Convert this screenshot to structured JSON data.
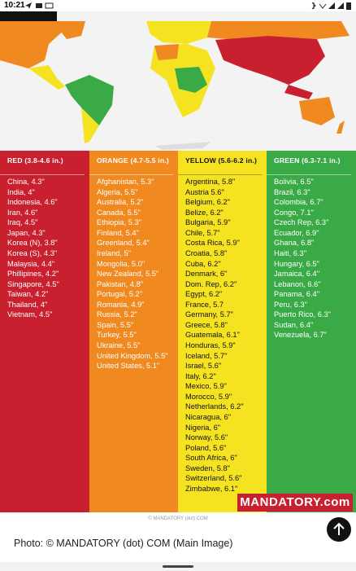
{
  "status_bar": {
    "time": "10:21"
  },
  "columns": [
    {
      "header": "RED (3.8-4.6 in.)",
      "items": [
        "China, 4.3\"",
        "India, 4\"",
        "Indonesia, 4.6\"",
        "Iran, 4.6\"",
        "Iraq, 4.5\"",
        "Japan, 4.3\"",
        "Korea (N), 3.8\"",
        "Korea (S), 4.3\"",
        "Malaysia, 4.4\"",
        "Phillipines, 4.2\"",
        "Singapore, 4.5\"",
        "Taiwan, 4.2\"",
        "Thailand, 4\"",
        "Vietnam, 4.5\""
      ]
    },
    {
      "header": "ORANGE (4.7-5.5 in.)",
      "items": [
        "Afghanistan, 5.3\"",
        "Algeria, 5.5\"",
        "Australia, 5.2\"",
        "Canada, 5.5\"",
        "Ethiopia, 5.3\"",
        "Finland, 5.4\"",
        "Greenland, 5.4\"",
        "Ireland, 5\"",
        "Mongolia, 5.0\"",
        "New Zealand, 5.5\"",
        "Pakistan, 4.8\"",
        "Portugal, 5.2\"",
        "Romania, 4.9\"",
        "Russia, 5.2\"",
        "Spain, 5.5\"",
        "Turkey, 5.5\"",
        "Ukraine, 5.5\"",
        "United Kingdom, 5.5\"",
        "United States, 5.1\""
      ]
    },
    {
      "header": "YELLOW (5.6-6.2 in.)",
      "items": [
        "Argentina, 5.8\"",
        "Austria 5.6\"",
        "Belgium, 6.2\"",
        "Belize, 6.2\"",
        "Bulgaria, 5.9\"",
        "Chile, 5.7\"",
        "Costa Rica, 5.9\"",
        "Croatia, 5.8\"",
        "Cuba, 6.2\"",
        "Denmark, 6\"",
        "Dom. Rep, 6.2\"",
        "Egypt, 6.2\"",
        "France, 5.7",
        "Germany, 5.7\"",
        "Greece, 5.8\"",
        "Guatemala, 6.1\"",
        "Honduras, 5.9\"",
        "Iceland, 5.7\"",
        "Israel, 5.6\"",
        "Italy, 6.2\"",
        "Mexico, 5.9\"",
        "Morocco, 5.9\"",
        "Netherlands, 6.2\"",
        "Nicaragua, 6\"",
        "Nigeria, 6\"",
        "Norway, 5.6\"",
        "Poland, 5.6\"",
        "South Africa, 6\"",
        "Sweden, 5.8\"",
        "Switzerland, 5.6\"",
        "Zimbabwe, 6.1\""
      ]
    },
    {
      "header": "GREEN (6.3-7.1 in.)",
      "items": [
        "Bolivia, 6.5\"",
        "Brazil, 6.3\"",
        "Colombia, 6.7\"",
        "Congo, 7.1\"",
        "Czech Rep, 6.3\"",
        "Ecuador, 6.9\"",
        "Ghana, 6.8\"",
        "Haiti, 6.3\"",
        "Hungary, 6.5\"",
        "Jamaica, 6.4\"",
        "Lebanon, 6.6\"",
        "Panama, 6.4\"",
        "Peru, 6.3\"",
        "Puerto Rico, 6.3\"",
        "Sudan, 6.4\"",
        "Venezuela, 6.7\""
      ]
    }
  ],
  "logo": "MANDATORY.com",
  "credit": "© MANDATORY (dot) COM",
  "caption": "Photo: © MANDATORY (dot) COM (Main Image)"
}
